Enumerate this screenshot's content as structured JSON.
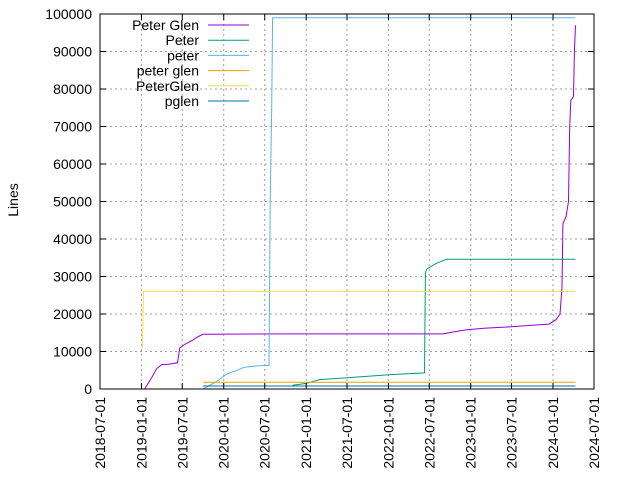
{
  "chart_data": {
    "type": "line",
    "title": "",
    "xlabel": "",
    "ylabel": "Lines",
    "x_type": "date",
    "xlim": [
      "2018-07-01",
      "2024-07-01"
    ],
    "ylim": [
      0,
      100000
    ],
    "x_ticks": [
      "2018-07-01",
      "2019-01-01",
      "2019-07-01",
      "2020-01-01",
      "2020-07-01",
      "2021-01-01",
      "2021-07-01",
      "2022-01-01",
      "2022-07-01",
      "2023-01-01",
      "2023-07-01",
      "2024-01-01",
      "2024-07-01"
    ],
    "y_ticks": [
      "0",
      "10000",
      "20000",
      "30000",
      "40000",
      "50000",
      "60000",
      "70000",
      "80000",
      "90000",
      "100000"
    ],
    "y_tick_values": [
      0,
      10000,
      20000,
      30000,
      40000,
      50000,
      60000,
      70000,
      80000,
      90000,
      100000
    ],
    "grid": true,
    "legend_position": "top-left",
    "series": [
      {
        "name": "Peter Glen",
        "color": "#9400d3",
        "points": [
          [
            "2019-01-15",
            0
          ],
          [
            "2019-02-15",
            3000
          ],
          [
            "2019-03-10",
            5500
          ],
          [
            "2019-04-01",
            6500
          ],
          [
            "2019-05-01",
            6600
          ],
          [
            "2019-06-10",
            7000
          ],
          [
            "2019-06-20",
            11000
          ],
          [
            "2019-07-15",
            12000
          ],
          [
            "2019-08-15",
            13000
          ],
          [
            "2019-09-10",
            14000
          ],
          [
            "2019-10-01",
            14600
          ],
          [
            "2020-10-01",
            14700
          ],
          [
            "2022-09-01",
            14700
          ],
          [
            "2022-10-15",
            15200
          ],
          [
            "2022-12-15",
            15800
          ],
          [
            "2023-03-01",
            16200
          ],
          [
            "2023-07-01",
            16600
          ],
          [
            "2023-10-01",
            17000
          ],
          [
            "2023-12-15",
            17300
          ],
          [
            "2024-01-15",
            18500
          ],
          [
            "2024-02-01",
            20000
          ],
          [
            "2024-02-10",
            27000
          ],
          [
            "2024-02-14",
            44000
          ],
          [
            "2024-02-28",
            46000
          ],
          [
            "2024-03-10",
            50000
          ],
          [
            "2024-03-15",
            70000
          ],
          [
            "2024-03-20",
            77000
          ],
          [
            "2024-04-01",
            78000
          ],
          [
            "2024-04-05",
            90000
          ],
          [
            "2024-04-10",
            97000
          ]
        ]
      },
      {
        "name": "Peter",
        "color": "#009e73",
        "points": [
          [
            "2020-11-01",
            1000
          ],
          [
            "2021-01-01",
            1500
          ],
          [
            "2021-03-01",
            2500
          ],
          [
            "2021-07-01",
            3000
          ],
          [
            "2022-01-01",
            3800
          ],
          [
            "2022-06-10",
            4300
          ],
          [
            "2022-06-14",
            31000
          ],
          [
            "2022-06-20",
            32000
          ],
          [
            "2022-08-01",
            33500
          ],
          [
            "2022-09-15",
            34600
          ],
          [
            "2024-04-10",
            34600
          ]
        ]
      },
      {
        "name": "peter",
        "color": "#56b4e9",
        "points": [
          [
            "2019-10-01",
            0
          ],
          [
            "2019-12-01",
            2000
          ],
          [
            "2020-01-15",
            4000
          ],
          [
            "2020-03-01",
            5000
          ],
          [
            "2020-04-01",
            5800
          ],
          [
            "2020-06-01",
            6200
          ],
          [
            "2020-07-20",
            6300
          ],
          [
            "2020-07-25",
            50000
          ],
          [
            "2020-08-01",
            75000
          ],
          [
            "2020-08-05",
            99000
          ],
          [
            "2024-04-10",
            99000
          ]
        ]
      },
      {
        "name": "peter glen",
        "color": "#e69f00",
        "points": [
          [
            "2019-10-01",
            1800
          ],
          [
            "2024-04-10",
            1800
          ]
        ]
      },
      {
        "name": "PeterGlen",
        "color": "#f0e442",
        "points": [
          [
            "2019-01-05",
            11000
          ],
          [
            "2019-01-10",
            26000
          ],
          [
            "2024-04-10",
            26000
          ]
        ]
      },
      {
        "name": "pglen",
        "color": "#0072b2",
        "points": [
          [
            "2019-10-01",
            800
          ],
          [
            "2024-04-10",
            800
          ]
        ]
      }
    ]
  }
}
